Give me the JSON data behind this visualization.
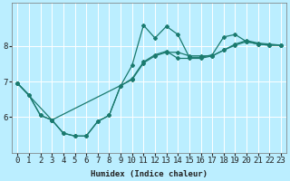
{
  "xlabel": "Humidex (Indice chaleur)",
  "bg_color": "#bbeeff",
  "line_color": "#1a7a6e",
  "grid_color": "#ffffff",
  "xlim": [
    -0.5,
    23.5
  ],
  "ylim": [
    5.0,
    9.2
  ],
  "yticks": [
    6,
    7,
    8
  ],
  "xticks": [
    0,
    1,
    2,
    3,
    4,
    5,
    6,
    7,
    8,
    9,
    10,
    11,
    12,
    13,
    14,
    15,
    16,
    17,
    18,
    19,
    20,
    21,
    22,
    23
  ],
  "line1_x": [
    0,
    1,
    2,
    3,
    4,
    5,
    6,
    7,
    8,
    9,
    10,
    11,
    12,
    13,
    14,
    15,
    16,
    17,
    18,
    19,
    20,
    21,
    22,
    23
  ],
  "line1_y": [
    6.95,
    6.62,
    6.05,
    5.92,
    5.55,
    5.47,
    5.47,
    5.88,
    6.05,
    6.88,
    7.45,
    8.58,
    8.22,
    8.55,
    8.32,
    7.68,
    7.68,
    7.75,
    8.25,
    8.32,
    8.12,
    8.05,
    8.02,
    8.02
  ],
  "line2_x": [
    0,
    1,
    2,
    3,
    4,
    5,
    6,
    7,
    8,
    9,
    10,
    11,
    12,
    13,
    14,
    15,
    16,
    17,
    18,
    19,
    20,
    21,
    22,
    23
  ],
  "line2_y": [
    6.95,
    6.62,
    6.05,
    5.92,
    5.55,
    5.47,
    5.47,
    5.88,
    6.05,
    6.88,
    7.08,
    7.55,
    7.75,
    7.85,
    7.65,
    7.65,
    7.65,
    7.72,
    7.88,
    8.02,
    8.12,
    8.05,
    8.02,
    8.02
  ],
  "line3_x": [
    0,
    3,
    10,
    11,
    12,
    13,
    14,
    15,
    16,
    17,
    18,
    19,
    20,
    21,
    22,
    23
  ],
  "line3_y": [
    6.95,
    5.92,
    7.05,
    7.52,
    7.72,
    7.82,
    7.82,
    7.72,
    7.72,
    7.72,
    7.88,
    8.05,
    8.15,
    8.08,
    8.05,
    8.02
  ]
}
